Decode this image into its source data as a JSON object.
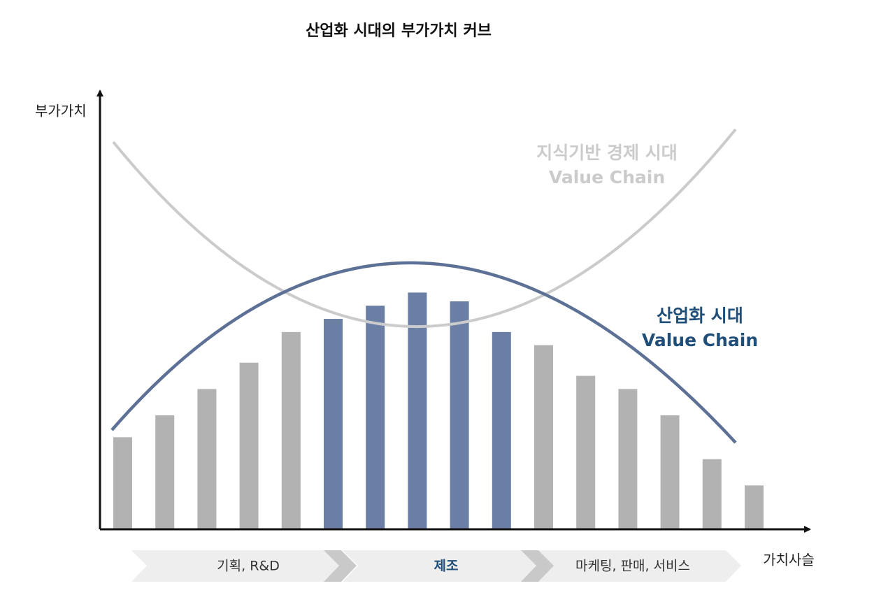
{
  "chart_data": {
    "type": "bar",
    "title": "산업화 시대의 부가가치 커브",
    "y_label": "부가가치",
    "x_label": "가치사슬",
    "values": [
      21,
      26,
      32,
      38,
      45,
      48,
      51,
      54,
      52,
      45,
      42,
      35,
      32,
      26,
      16,
      10
    ],
    "ylim": [
      0,
      100
    ],
    "color": "#b2b2b2",
    "highlight_color": "#6a7fa3",
    "highlight": [
      5,
      6,
      7,
      8,
      9
    ],
    "curves": [
      {
        "label": [
          "지식기반 경제 시대",
          "Value Chain"
        ],
        "color": "#cbcbcb"
      },
      {
        "label": [
          "산업화 시대",
          "Value Chain"
        ],
        "color": "#1f4e79"
      }
    ],
    "stages": [
      "기획, R&D",
      "제조",
      "마케팅, 판매, 서비스"
    ]
  }
}
